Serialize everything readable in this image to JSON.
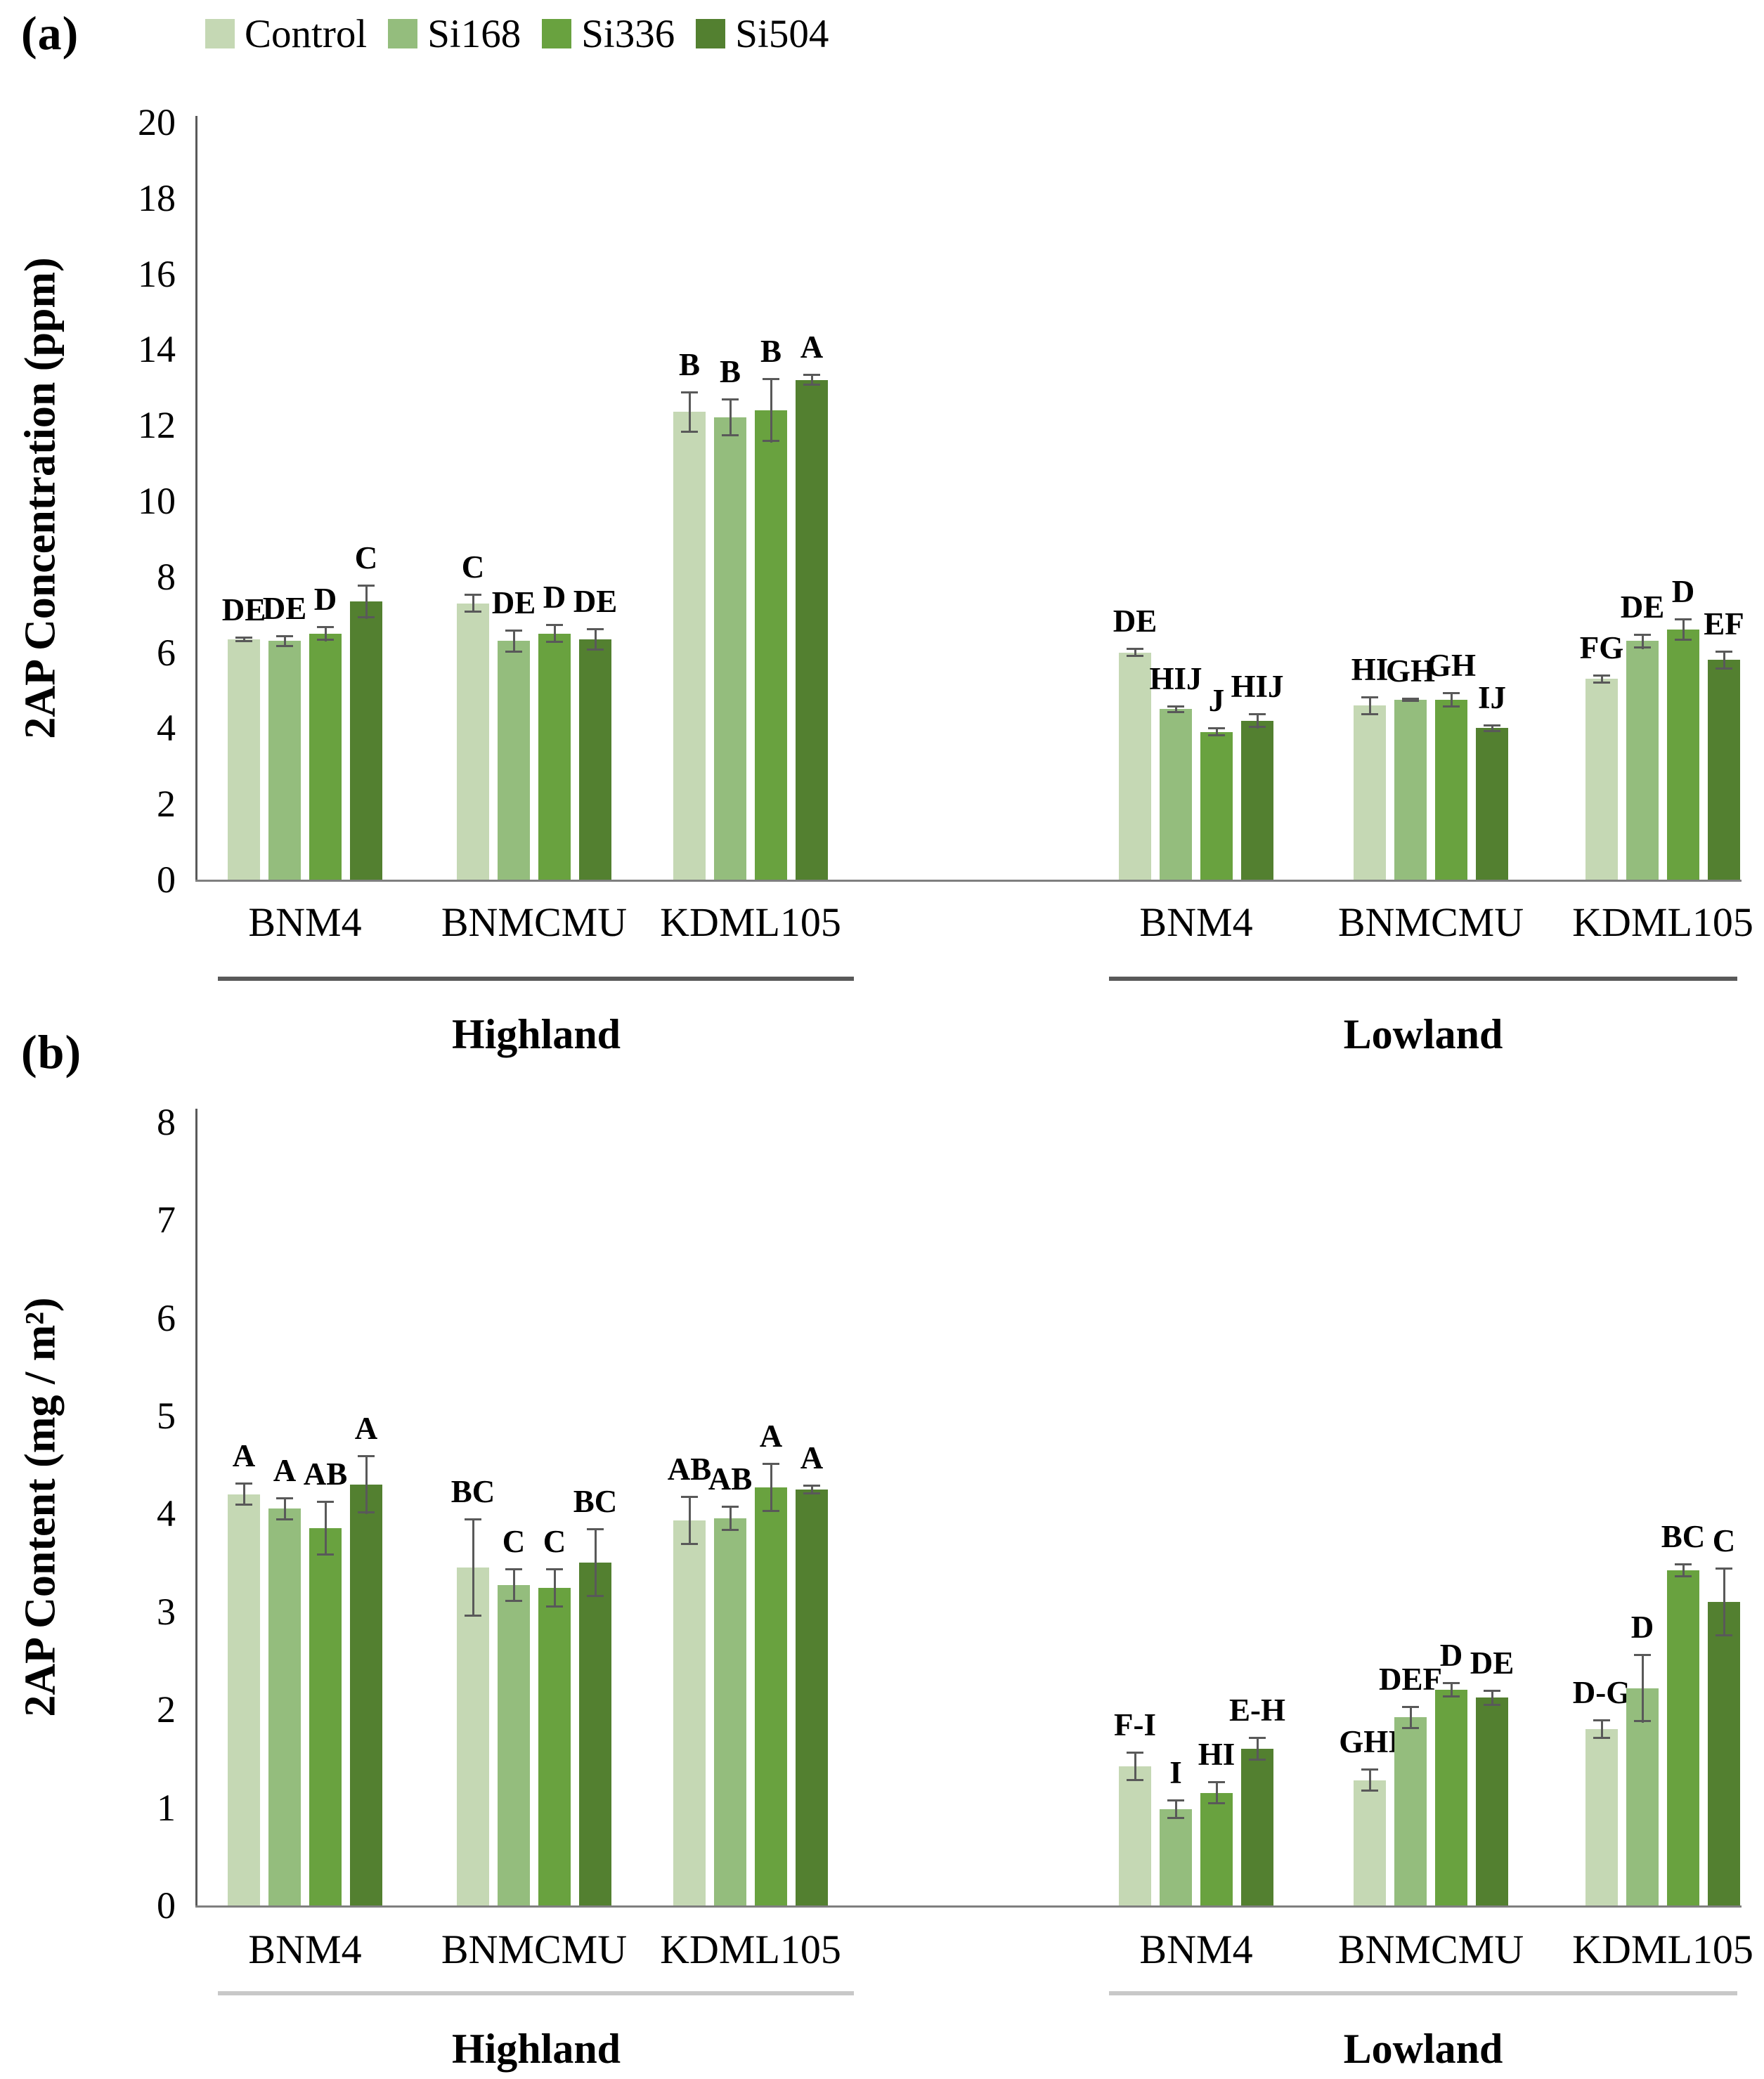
{
  "figure_title": "",
  "locations": [
    "Highland",
    "Lowland"
  ],
  "cultivars": [
    "BNM4",
    "BNMCMU",
    "KDML105"
  ],
  "legend": {
    "items": [
      {
        "label": "Control",
        "color": "#c5d8b4"
      },
      {
        "label": "Si168",
        "color": "#94bd7d"
      },
      {
        "label": "Si336",
        "color": "#69a23f"
      },
      {
        "label": "Si504",
        "color": "#538030"
      }
    ]
  },
  "error_bar_color": "#595959",
  "axis_color": "#595959",
  "chart_data": [
    {
      "id": "a",
      "panel_label": "(a)",
      "type": "bar",
      "ylabel": "2AP Concentration (ppm)",
      "xlabel": "",
      "ylim": [
        0,
        20
      ],
      "ytick_step": 2,
      "grid": false,
      "legend_position": "top-left",
      "series_names": [
        "Control",
        "Si168",
        "Si336",
        "Si504"
      ],
      "groups": [
        {
          "location": "Highland",
          "cultivar": "BNM4",
          "values": [
            6.35,
            6.3,
            6.5,
            7.35
          ],
          "errors": [
            0.07,
            0.15,
            0.2,
            0.45
          ],
          "letters": [
            "DE",
            "DE",
            "D",
            "C"
          ]
        },
        {
          "location": "Highland",
          "cultivar": "BNMCMU",
          "values": [
            7.3,
            6.3,
            6.5,
            6.35
          ],
          "errors": [
            0.25,
            0.3,
            0.25,
            0.3
          ],
          "letters": [
            "C",
            "DE",
            "D",
            "DE"
          ]
        },
        {
          "location": "Highland",
          "cultivar": "KDML105",
          "values": [
            12.35,
            12.2,
            12.4,
            13.2
          ],
          "errors": [
            0.55,
            0.5,
            0.85,
            0.15
          ],
          "letters": [
            "B",
            "B",
            "B",
            "A"
          ]
        },
        {
          "location": "Lowland",
          "cultivar": "BNM4",
          "values": [
            6.0,
            4.5,
            3.9,
            4.2
          ],
          "errors": [
            0.12,
            0.1,
            0.12,
            0.2
          ],
          "letters": [
            "DE",
            "HIJ",
            "J",
            "HIJ"
          ]
        },
        {
          "location": "Lowland",
          "cultivar": "BNMCMU",
          "values": [
            4.6,
            4.75,
            4.75,
            4.0
          ],
          "errors": [
            0.25,
            0.06,
            0.2,
            0.1
          ],
          "letters": [
            "HI",
            "GH",
            "GH",
            "IJ"
          ]
        },
        {
          "location": "Lowland",
          "cultivar": "KDML105",
          "values": [
            5.3,
            6.3,
            6.6,
            5.8
          ],
          "errors": [
            0.12,
            0.2,
            0.3,
            0.25
          ],
          "letters": [
            "FG",
            "DE",
            "D",
            "EF"
          ]
        }
      ]
    },
    {
      "id": "b",
      "panel_label": "(b)",
      "type": "bar",
      "ylabel": "2AP Content (mg / m²)",
      "xlabel": "",
      "ylim": [
        0,
        8
      ],
      "ytick_step": 1,
      "grid": false,
      "legend_position": "none",
      "series_names": [
        "Control",
        "Si168",
        "Si336",
        "Si504"
      ],
      "groups": [
        {
          "location": "Highland",
          "cultivar": "BNM4",
          "values": [
            4.2,
            4.05,
            3.85,
            4.3
          ],
          "errors": [
            0.12,
            0.12,
            0.28,
            0.3
          ],
          "letters": [
            "A",
            "A",
            "AB",
            "A"
          ]
        },
        {
          "location": "Highland",
          "cultivar": "BNMCMU",
          "values": [
            3.45,
            3.27,
            3.24,
            3.5
          ],
          "errors": [
            0.5,
            0.17,
            0.2,
            0.35
          ],
          "letters": [
            "BC",
            "C",
            "C",
            "BC"
          ]
        },
        {
          "location": "Highland",
          "cultivar": "KDML105",
          "values": [
            3.93,
            3.95,
            4.27,
            4.25
          ],
          "errors": [
            0.25,
            0.13,
            0.25,
            0.05
          ],
          "letters": [
            "AB",
            "AB",
            "A",
            "A"
          ]
        },
        {
          "location": "Lowland",
          "cultivar": "BNM4",
          "values": [
            1.42,
            0.98,
            1.15,
            1.6
          ],
          "errors": [
            0.15,
            0.1,
            0.12,
            0.12
          ],
          "letters": [
            "F-I",
            "I",
            "HI",
            "E-H"
          ]
        },
        {
          "location": "Lowland",
          "cultivar": "BNMCMU",
          "values": [
            1.28,
            1.92,
            2.2,
            2.12
          ],
          "errors": [
            0.12,
            0.12,
            0.08,
            0.08
          ],
          "letters": [
            "GHI",
            "DEF",
            "D",
            "DE"
          ]
        },
        {
          "location": "Lowland",
          "cultivar": "KDML105",
          "values": [
            1.8,
            2.22,
            3.42,
            3.1
          ],
          "errors": [
            0.1,
            0.35,
            0.07,
            0.35
          ],
          "letters": [
            "D-G",
            "D",
            "BC",
            "C"
          ]
        }
      ]
    }
  ]
}
